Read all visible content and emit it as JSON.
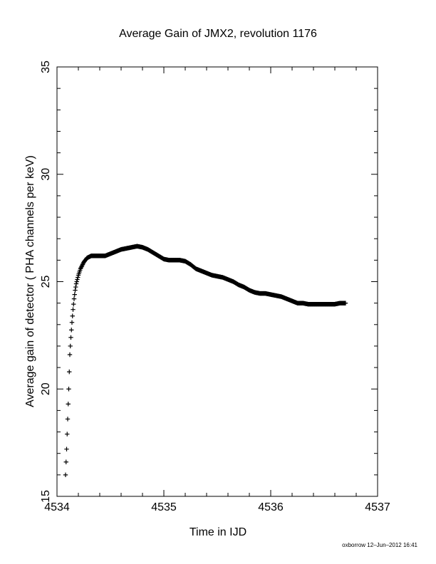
{
  "chart_data": {
    "type": "scatter",
    "marker": "plus",
    "title": "Average Gain of JMX2, revolution 1176",
    "xlabel": "Time in IJD",
    "ylabel": "Average gain of detector ( PHA channels per keV)",
    "xlim": [
      4534,
      4537
    ],
    "ylim": [
      15,
      35
    ],
    "xticks": [
      "4534",
      "4535",
      "4536",
      "4537"
    ],
    "yticks": [
      "15",
      "20",
      "25",
      "30",
      "35"
    ],
    "grid": false,
    "points_x": [
      4534.08,
      4534.085,
      4534.09,
      4534.095,
      4534.1,
      4534.105,
      4534.11,
      4534.115,
      4534.12,
      4534.13,
      4534.14,
      4534.15,
      4534.16,
      4534.17,
      4534.18,
      4534.2,
      4534.22,
      4534.25,
      4534.28,
      4534.32,
      4534.36,
      4534.4,
      4534.45,
      4534.5,
      4534.55,
      4534.6,
      4534.65,
      4534.7,
      4534.75,
      4534.8,
      4534.85,
      4534.9,
      4534.95,
      4535.0,
      4535.05,
      4535.1,
      4535.15,
      4535.2,
      4535.25,
      4535.3,
      4535.35,
      4535.4,
      4535.45,
      4535.5,
      4535.55,
      4535.6,
      4535.65,
      4535.7,
      4535.75,
      4535.8,
      4535.85,
      4535.9,
      4535.95,
      4536.0,
      4536.05,
      4536.1,
      4536.15,
      4536.2,
      4536.25,
      4536.3,
      4536.35,
      4536.4,
      4536.45,
      4536.5,
      4536.55,
      4536.6,
      4536.65,
      4536.7
    ],
    "points_y": [
      16.0,
      16.6,
      17.2,
      17.9,
      18.6,
      19.3,
      20.0,
      20.8,
      21.6,
      22.4,
      23.1,
      23.7,
      24.2,
      24.6,
      24.9,
      25.3,
      25.6,
      25.9,
      26.1,
      26.2,
      26.2,
      26.2,
      26.2,
      26.3,
      26.4,
      26.5,
      26.55,
      26.6,
      26.65,
      26.6,
      26.5,
      26.35,
      26.2,
      26.05,
      26.0,
      26.0,
      26.0,
      25.95,
      25.8,
      25.6,
      25.5,
      25.4,
      25.3,
      25.25,
      25.2,
      25.1,
      25.0,
      24.85,
      24.75,
      24.6,
      24.5,
      24.45,
      24.45,
      24.4,
      24.35,
      24.3,
      24.2,
      24.1,
      24.0,
      24.0,
      23.95,
      23.95,
      23.95,
      23.95,
      23.95,
      23.95,
      24.0,
      24.0
    ],
    "footer_note": "oxborrow 12–Jun–2012 16:41"
  }
}
